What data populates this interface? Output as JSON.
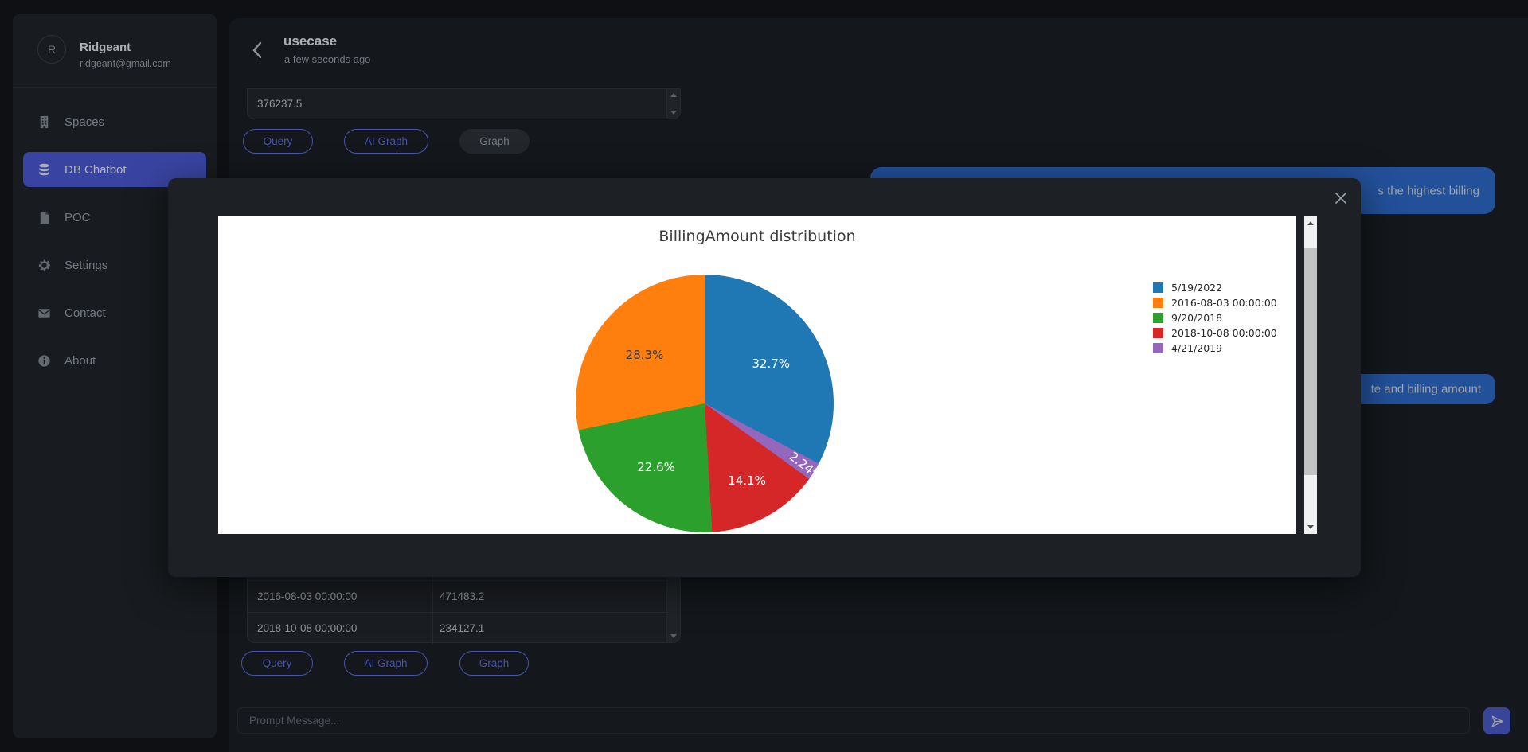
{
  "palette": {
    "page_bg": "#13161a",
    "content_bg": "#1b1f24",
    "sidebar_bg": "#21252a",
    "accent": "#4c5bd8",
    "accent_text": "#5f6fe8",
    "bubble_blue": "#2e6bcc",
    "send_bg": "#4d5ccc",
    "table_bg": "#23272d",
    "table_border": "#33383f",
    "modal_bg": "#1d2024",
    "chart_bg": "#ffffff",
    "disabled_bg": "#2f333a",
    "disabled_text": "#9aa2ab",
    "text_primary": "#e8ecf0",
    "text_secondary": "#9aa1a8",
    "text_muted": "#6b727a",
    "scroll_track": "#f1f1f1",
    "scroll_thumb": "#c3c3c3"
  },
  "sidebar": {
    "user": {
      "initial": "R",
      "name": "Ridgeant",
      "email": "ridgeant@gmail.com"
    },
    "items": [
      {
        "label": "Spaces",
        "icon": "building-icon"
      },
      {
        "label": "DB Chatbot",
        "icon": "database-icon",
        "active": true
      },
      {
        "label": "POC",
        "icon": "file-icon"
      },
      {
        "label": "Settings",
        "icon": "gear-icon"
      },
      {
        "label": "Contact",
        "icon": "envelope-icon"
      },
      {
        "label": "About",
        "icon": "info-icon"
      }
    ]
  },
  "header": {
    "title": "usecase",
    "subtitle": "a few seconds ago"
  },
  "top_group": {
    "table": {
      "rows": [
        {
          "value": "376237.5"
        }
      ]
    },
    "buttons": [
      {
        "label": "Query",
        "disabled": false
      },
      {
        "label": "AI Graph",
        "disabled": false
      },
      {
        "label": "Graph",
        "disabled": true
      }
    ]
  },
  "chat": {
    "bubbles": [
      {
        "text": "s the highest billing"
      },
      {
        "text": "te and billing amount"
      }
    ]
  },
  "bottom_group": {
    "table": {
      "rows": [
        {
          "date": "2016-08-03 00:00:00",
          "amount": "471483.2"
        },
        {
          "date": "2018-10-08 00:00:00",
          "amount": "234127.1"
        }
      ]
    },
    "buttons": [
      {
        "label": "Query"
      },
      {
        "label": "AI Graph"
      },
      {
        "label": "Graph"
      }
    ]
  },
  "composer": {
    "placeholder": "Prompt Message..."
  },
  "chart_data": {
    "type": "pie",
    "title": "BillingAmount distribution",
    "legend_position": "right",
    "slices": [
      {
        "label": "5/19/2022",
        "value": 32.7,
        "pct_text": "32.7%",
        "color": "#1f77b4",
        "text_color": "#ffffff",
        "label_r": 0.6,
        "rotate": 0
      },
      {
        "label": "4/21/2019",
        "value": 2.24,
        "pct_text": "2.24%",
        "color": "#9467bd",
        "text_color": "#ffffff",
        "label_r": 0.92,
        "rotate": 38
      },
      {
        "label": "2018-10-08 00:00:00",
        "value": 14.1,
        "pct_text": "14.1%",
        "color": "#d62728",
        "text_color": "#ffffff",
        "label_r": 0.68,
        "rotate": 0
      },
      {
        "label": "9/20/2018",
        "value": 22.6,
        "pct_text": "22.6%",
        "color": "#2ca02c",
        "text_color": "#ffffff",
        "label_r": 0.62,
        "rotate": 0
      },
      {
        "label": "2016-08-03 00:00:00",
        "value": 28.3,
        "pct_text": "28.3%",
        "color": "#ff7f0e",
        "text_color": "#3a3a3a",
        "label_r": 0.6,
        "rotate": 0
      }
    ],
    "legend": [
      {
        "label": "5/19/2022",
        "color": "#1f77b4"
      },
      {
        "label": "2016-08-03 00:00:00",
        "color": "#ff7f0e"
      },
      {
        "label": "9/20/2018",
        "color": "#2ca02c"
      },
      {
        "label": "2018-10-08 00:00:00",
        "color": "#d62728"
      },
      {
        "label": "4/21/2019",
        "color": "#9467bd"
      }
    ]
  }
}
